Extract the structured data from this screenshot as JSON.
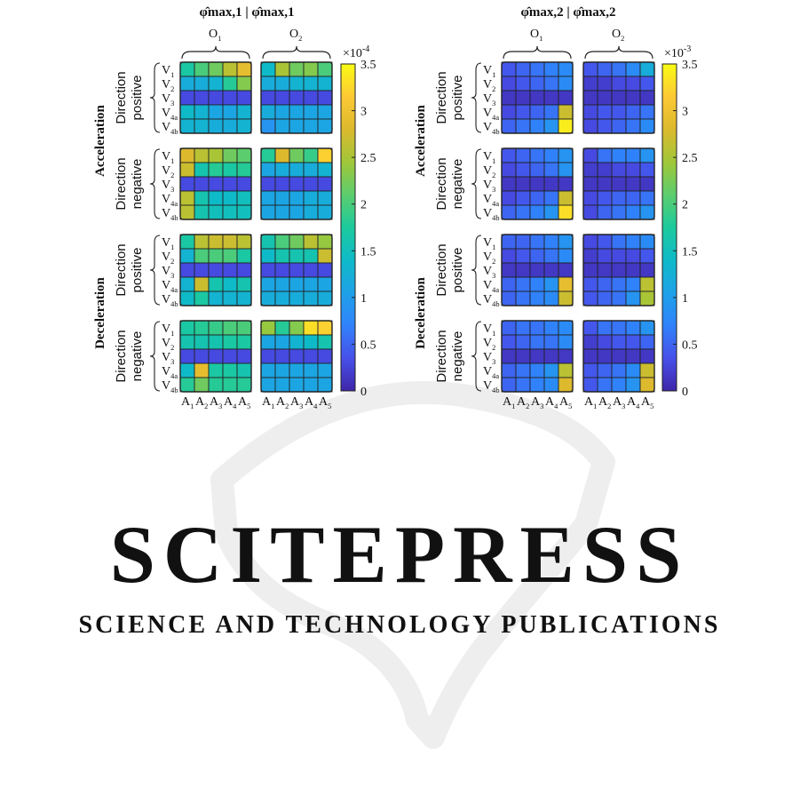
{
  "watermark": {
    "name": "SCITEPRESS",
    "tagline": "SCIENCE AND TECHNOLOGY PUBLICATIONS",
    "color": "#eeeeee"
  },
  "labels": {
    "operators": [
      "O1",
      "O2"
    ],
    "rows": [
      "V1",
      "V2",
      "V3",
      "V4a",
      "V4b"
    ],
    "columns": [
      "A1",
      "A2",
      "A3",
      "A4",
      "A5"
    ],
    "direction_word": "Direction",
    "directions": [
      "positive",
      "negative",
      "positive",
      "negative"
    ],
    "phases": [
      "Acceleration",
      "Deceleration"
    ]
  },
  "chart_data": [
    {
      "type": "heatmap",
      "title": "φ̂max,1 | φ̂max,1",
      "colorbar": {
        "ticks": [
          0,
          0.5,
          1,
          1.5,
          2,
          2.5,
          3,
          3.5
        ],
        "exponent": "×10^-4",
        "range": [
          0,
          3.5
        ]
      },
      "panels": [
        {
          "phase": "Acceleration",
          "direction": "positive",
          "O1": [
            [
              1.7,
              2.0,
              2.2,
              2.6,
              2.9
            ],
            [
              1.2,
              1.2,
              1.3,
              1.8,
              2.3
            ],
            [
              0.3,
              0.3,
              0.3,
              0.3,
              0.3
            ],
            [
              1.4,
              1.3,
              1.1,
              1.1,
              1.3
            ],
            [
              1.3,
              1.3,
              1.2,
              1.2,
              1.3
            ]
          ],
          "O2": [
            [
              1.4,
              2.5,
              2.2,
              2.3,
              2.0
            ],
            [
              1.2,
              1.2,
              1.3,
              1.3,
              1.3
            ],
            [
              0.3,
              0.3,
              0.3,
              0.3,
              0.3
            ],
            [
              1.2,
              1.1,
              1.1,
              1.1,
              1.1
            ],
            [
              0.9,
              1.1,
              1.1,
              1.1,
              1.1
            ]
          ]
        },
        {
          "phase": "Acceleration",
          "direction": "negative",
          "O1": [
            [
              2.8,
              2.6,
              2.5,
              2.2,
              2.1
            ],
            [
              2.7,
              1.6,
              1.8,
              1.7,
              1.8
            ],
            [
              0.3,
              0.3,
              0.3,
              0.3,
              0.3
            ],
            [
              2.6,
              1.6,
              1.4,
              1.4,
              1.5
            ],
            [
              2.6,
              1.6,
              1.5,
              1.5,
              1.5
            ]
          ],
          "O2": [
            [
              1.8,
              2.8,
              2.2,
              1.9,
              3.2
            ],
            [
              1.1,
              1.2,
              1.2,
              1.2,
              1.3
            ],
            [
              0.3,
              0.3,
              0.3,
              0.3,
              0.3
            ],
            [
              1.1,
              1.1,
              1.1,
              1.2,
              1.2
            ],
            [
              1.1,
              1.1,
              1.1,
              1.2,
              1.2
            ]
          ]
        },
        {
          "phase": "Deceleration",
          "direction": "positive",
          "O1": [
            [
              1.7,
              2.6,
              2.7,
              2.7,
              2.6
            ],
            [
              1.3,
              2.0,
              2.0,
              2.0,
              1.7
            ],
            [
              0.3,
              0.3,
              0.3,
              0.3,
              0.3
            ],
            [
              1.3,
              2.7,
              1.6,
              1.4,
              1.6
            ],
            [
              1.4,
              1.7,
              1.3,
              1.3,
              1.3
            ]
          ],
          "O2": [
            [
              1.6,
              2.0,
              2.2,
              2.6,
              2.4
            ],
            [
              1.4,
              1.6,
              1.6,
              1.6,
              2.7
            ],
            [
              0.3,
              0.3,
              0.3,
              0.3,
              0.3
            ],
            [
              1.1,
              1.1,
              1.1,
              1.1,
              1.1
            ],
            [
              1.2,
              1.2,
              1.2,
              1.2,
              1.2
            ]
          ]
        },
        {
          "phase": "Deceleration",
          "direction": "negative",
          "O1": [
            [
              1.7,
              1.8,
              1.9,
              2.0,
              2.0
            ],
            [
              1.6,
              1.6,
              1.6,
              1.7,
              1.7
            ],
            [
              0.3,
              0.3,
              0.3,
              0.3,
              0.3
            ],
            [
              1.4,
              2.9,
              1.7,
              1.7,
              1.6
            ],
            [
              1.8,
              2.2,
              1.8,
              1.8,
              1.8
            ]
          ],
          "O2": [
            [
              2.4,
              1.8,
              2.3,
              3.3,
              3.2
            ],
            [
              1.1,
              1.1,
              1.3,
              1.4,
              1.6
            ],
            [
              0.3,
              0.3,
              0.3,
              0.3,
              0.3
            ],
            [
              1.1,
              1.1,
              1.1,
              1.1,
              1.1
            ],
            [
              1.1,
              1.1,
              1.1,
              1.1,
              1.1
            ]
          ]
        }
      ]
    },
    {
      "type": "heatmap",
      "title": "φ̂max,2 | φ̂max,2",
      "colorbar": {
        "ticks": [
          0,
          0.5,
          1,
          1.5,
          2,
          2.5,
          3,
          3.5
        ],
        "exponent": "×10^-3",
        "range": [
          0,
          3.5
        ]
      },
      "panels": [
        {
          "phase": "Acceleration",
          "direction": "positive",
          "O1": [
            [
              0.4,
              0.5,
              0.6,
              0.7,
              0.8
            ],
            [
              0.3,
              0.4,
              0.5,
              0.6,
              0.8
            ],
            [
              0.15,
              0.15,
              0.15,
              0.15,
              0.15
            ],
            [
              0.3,
              0.4,
              0.5,
              0.6,
              2.7
            ],
            [
              0.5,
              0.6,
              0.7,
              0.9,
              3.4
            ]
          ],
          "O2": [
            [
              0.4,
              0.5,
              0.6,
              0.8,
              1.2
            ],
            [
              0.2,
              0.2,
              0.3,
              0.3,
              0.4
            ],
            [
              0.15,
              0.15,
              0.15,
              0.15,
              0.15
            ],
            [
              0.3,
              0.4,
              0.4,
              0.5,
              0.6
            ],
            [
              0.3,
              0.4,
              0.5,
              0.6,
              0.8
            ]
          ]
        },
        {
          "phase": "Acceleration",
          "direction": "negative",
          "O1": [
            [
              0.4,
              0.5,
              0.6,
              0.7,
              0.9
            ],
            [
              0.3,
              0.4,
              0.5,
              0.6,
              0.9
            ],
            [
              0.15,
              0.15,
              0.15,
              0.15,
              0.15
            ],
            [
              0.3,
              0.4,
              0.5,
              0.6,
              2.7
            ],
            [
              0.5,
              0.6,
              0.7,
              0.9,
              3.3
            ]
          ],
          "O2": [
            [
              0.3,
              0.6,
              0.7,
              0.7,
              0.9
            ],
            [
              0.2,
              0.2,
              0.3,
              0.3,
              0.4
            ],
            [
              0.15,
              0.15,
              0.15,
              0.15,
              0.15
            ],
            [
              0.3,
              0.4,
              0.5,
              0.5,
              0.6
            ],
            [
              0.3,
              0.5,
              0.6,
              0.7,
              0.9
            ]
          ]
        },
        {
          "phase": "Deceleration",
          "direction": "positive",
          "O1": [
            [
              0.5,
              0.5,
              0.6,
              0.7,
              0.9
            ],
            [
              0.3,
              0.4,
              0.5,
              0.6,
              0.8
            ],
            [
              0.15,
              0.15,
              0.15,
              0.15,
              0.15
            ],
            [
              0.5,
              0.6,
              0.7,
              0.9,
              2.9
            ],
            [
              0.5,
              0.6,
              0.7,
              0.8,
              2.7
            ]
          ],
          "O2": [
            [
              0.3,
              0.4,
              0.6,
              0.7,
              0.8
            ],
            [
              0.2,
              0.3,
              0.3,
              0.3,
              0.4
            ],
            [
              0.15,
              0.15,
              0.15,
              0.15,
              0.15
            ],
            [
              0.4,
              0.5,
              0.6,
              0.7,
              2.6
            ],
            [
              0.4,
              0.5,
              0.6,
              0.9,
              2.5
            ]
          ]
        },
        {
          "phase": "Deceleration",
          "direction": "negative",
          "O1": [
            [
              0.5,
              0.6,
              0.6,
              0.7,
              0.8
            ],
            [
              0.4,
              0.5,
              0.6,
              0.6,
              0.8
            ],
            [
              0.15,
              0.15,
              0.15,
              0.15,
              0.15
            ],
            [
              0.5,
              0.6,
              0.7,
              0.9,
              2.6
            ],
            [
              0.5,
              0.6,
              0.7,
              0.8,
              2.8
            ]
          ],
          "O2": [
            [
              0.4,
              0.6,
              0.6,
              0.7,
              0.9
            ],
            [
              0.2,
              0.3,
              0.4,
              0.4,
              0.5
            ],
            [
              0.15,
              0.15,
              0.15,
              0.15,
              0.15
            ],
            [
              0.4,
              0.5,
              0.6,
              0.8,
              2.7
            ],
            [
              0.4,
              0.6,
              0.7,
              0.9,
              2.8
            ]
          ]
        }
      ]
    }
  ]
}
